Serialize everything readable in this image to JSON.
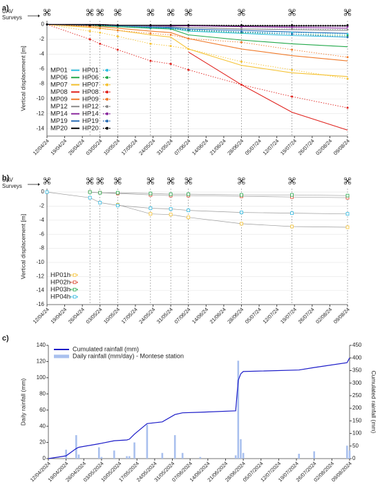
{
  "chart_data": [
    {
      "type": "line",
      "panel_label": "a)",
      "annotation": "UAV Surveys",
      "ylabel": "Vertical displacement [m]",
      "surveys": [
        "12/04/24",
        "29/04/24",
        "03/05/24",
        "10/05/24",
        "23/05/24",
        "31/05/24",
        "07/06/24",
        "28/06/24",
        "18/07/24",
        "09/08/24"
      ],
      "x": [
        "12/04/24",
        "29/04/24",
        "03/05/24",
        "10/05/24",
        "23/05/24",
        "31/05/24",
        "07/06/24",
        "28/06/24",
        "18/07/24",
        "09/08/24"
      ],
      "xlim": [
        "12/04/24",
        "09/08/24"
      ],
      "xticks": [
        "12/04/24",
        "19/04/24",
        "26/04/24",
        "03/05/24",
        "10/05/24",
        "17/05/24",
        "24/05/24",
        "31/05/24",
        "07/06/24",
        "14/06/24",
        "21/06/24",
        "28/06/24",
        "05/07/24",
        "12/07/24",
        "19/07/24",
        "26/07/24",
        "02/08/24",
        "09/08/24"
      ],
      "ylim": [
        -15,
        0.5
      ],
      "yticks": [
        0,
        -2,
        -4,
        -6,
        -8,
        -10,
        -12,
        -14
      ],
      "grid": true,
      "legend": "lower left",
      "series": [
        {
          "name": "MP01",
          "color": "#2fc0e0",
          "style": "solid",
          "values": [
            0,
            -0.1,
            -0.1,
            -0.2,
            -0.4,
            -0.5,
            -0.9,
            -1.2,
            -1.5,
            -1.7
          ]
        },
        {
          "name": "MP06",
          "color": "#22a84a",
          "style": "solid",
          "values": [
            0,
            -0.1,
            -0.2,
            -0.3,
            -0.5,
            -0.6,
            -1.4,
            -2.1,
            -2.6,
            -3.0
          ]
        },
        {
          "name": "MP07",
          "color": "#f5c232",
          "style": "solid",
          "values": [
            0,
            -0.4,
            -0.5,
            -0.8,
            -1.4,
            -1.7,
            -3.3,
            -5.5,
            -6.5,
            -7.0
          ]
        },
        {
          "name": "MP08",
          "color": "#e0211c",
          "style": "solid",
          "values": [
            null,
            null,
            null,
            null,
            null,
            null,
            -3.7,
            -8.1,
            -11.8,
            -14.2
          ]
        },
        {
          "name": "MP09",
          "color": "#f07a2a",
          "style": "solid",
          "values": [
            0,
            -0.2,
            -0.3,
            -0.5,
            -0.9,
            -1.1,
            -1.9,
            -3.3,
            -4.2,
            -4.9
          ]
        },
        {
          "name": "MP12",
          "color": "#888888",
          "style": "solid",
          "values": [
            0,
            0,
            -0.1,
            -0.1,
            -0.2,
            -0.3,
            -0.4,
            -0.6,
            -0.7,
            -0.8
          ]
        },
        {
          "name": "MP14",
          "color": "#8a2a9e",
          "style": "solid",
          "values": [
            0,
            0,
            0,
            -0.1,
            -0.1,
            -0.2,
            -0.2,
            -0.3,
            -0.4,
            -0.5
          ]
        },
        {
          "name": "MP19",
          "color": "#2a6eb5",
          "style": "solid",
          "values": [
            0,
            -0.1,
            -0.1,
            -0.2,
            -0.3,
            -0.4,
            -0.6,
            -0.8,
            -1.0,
            -1.2
          ]
        },
        {
          "name": "MP20",
          "color": "#000000",
          "style": "solid",
          "values": [
            0,
            0,
            0,
            -0.1,
            -0.1,
            -0.1,
            -0.1,
            -0.2,
            -0.2,
            -0.2
          ]
        },
        {
          "name": "HP01",
          "color": "#2fc0e0",
          "style": "dotted",
          "marker": "circle",
          "values": [
            0,
            -0.1,
            -0.2,
            -0.3,
            -0.5,
            -0.6,
            -0.7,
            -1.0,
            -1.1,
            -1.3
          ]
        },
        {
          "name": "HP06",
          "color": "#22a84a",
          "style": "dotted",
          "marker": "circle",
          "values": [
            0,
            -0.1,
            -0.2,
            -0.3,
            -0.5,
            -0.6,
            -0.8,
            -1.1,
            -1.3,
            -1.5
          ]
        },
        {
          "name": "HP07",
          "color": "#f5c232",
          "style": "dotted",
          "marker": "circle",
          "values": [
            0,
            -0.9,
            -1.1,
            -1.6,
            -2.6,
            -2.9,
            -3.3,
            -5.0,
            -6.1,
            -7.3
          ]
        },
        {
          "name": "HP08",
          "color": "#e0211c",
          "style": "dotted",
          "marker": "circle",
          "values": [
            0,
            -2.0,
            -2.6,
            -3.4,
            -4.9,
            -5.3,
            -6.1,
            -8.1,
            -9.7,
            -11.2
          ]
        },
        {
          "name": "HP09",
          "color": "#f07a2a",
          "style": "dotted",
          "marker": "circle",
          "values": [
            0,
            -0.3,
            -0.5,
            -0.8,
            -1.2,
            -1.4,
            -1.9,
            -2.4,
            -3.4,
            -4.4
          ]
        },
        {
          "name": "HP12",
          "color": "#888888",
          "style": "dotted",
          "marker": "circle",
          "values": [
            0,
            -0.1,
            -0.1,
            -0.2,
            -0.3,
            -0.3,
            -0.4,
            -0.6,
            -0.6,
            -0.7
          ]
        },
        {
          "name": "HP14",
          "color": "#8a2a9e",
          "style": "dotted",
          "marker": "circle",
          "values": [
            0,
            -0.1,
            -0.1,
            -0.1,
            -0.2,
            -0.2,
            -0.2,
            -0.3,
            -0.3,
            -0.3
          ]
        },
        {
          "name": "HP19",
          "color": "#2a6eb5",
          "style": "dotted",
          "marker": "circle",
          "values": [
            0,
            -0.1,
            -0.1,
            -0.2,
            -0.4,
            -0.5,
            -0.7,
            -1.0,
            -1.3,
            -1.7
          ]
        },
        {
          "name": "HP20",
          "color": "#000000",
          "style": "dotted",
          "marker": "circle",
          "values": [
            0,
            -0.1,
            -0.1,
            -0.1,
            -0.1,
            -0.1,
            -0.1,
            -0.1,
            -0.1,
            -0.1
          ]
        }
      ]
    },
    {
      "type": "line",
      "panel_label": "b)",
      "annotation": "UAV Surveys",
      "ylabel": "Vertical displacement [m]",
      "surveys": [
        "12/04/24",
        "29/04/24",
        "03/05/24",
        "10/05/24",
        "23/05/24",
        "31/05/24",
        "07/06/24",
        "28/06/24",
        "18/07/24",
        "09/08/24"
      ],
      "x": [
        "12/04/24",
        "29/04/24",
        "03/05/24",
        "10/05/24",
        "23/05/24",
        "31/05/24",
        "07/06/24",
        "28/06/24",
        "18/07/24",
        "09/08/24"
      ],
      "xlim": [
        "12/04/24",
        "09/08/24"
      ],
      "xticks": [
        "12/04/24",
        "19/04/24",
        "26/04/24",
        "03/05/24",
        "10/05/24",
        "17/05/24",
        "24/05/24",
        "31/05/24",
        "07/06/24",
        "14/06/24",
        "21/06/24",
        "28/06/24",
        "05/07/24",
        "12/07/24",
        "19/07/24",
        "26/07/24",
        "02/08/24",
        "09/08/24"
      ],
      "ylim": [
        -16,
        0.5
      ],
      "yticks": [
        0,
        -2,
        -4,
        -6,
        -8,
        -10,
        -12,
        -14,
        -16
      ],
      "grid": true,
      "legend": "lower left",
      "line_color": "#9a9a9a",
      "series": [
        {
          "name": "HP01h",
          "color": "#f5c232",
          "style": "solid",
          "marker": "square",
          "values": [
            null,
            null,
            null,
            -1.8,
            -3.1,
            -3.2,
            -3.6,
            -4.5,
            -4.9,
            -5.0
          ]
        },
        {
          "name": "HP02h",
          "color": "#d9452b",
          "style": "solid",
          "marker": "square",
          "values": [
            null,
            0,
            -0.1,
            -0.2,
            -0.4,
            -0.5,
            -0.5,
            -0.6,
            -0.7,
            -0.8
          ]
        },
        {
          "name": "HP03h",
          "color": "#22a84a",
          "style": "solid",
          "marker": "square",
          "values": [
            null,
            0,
            -0.1,
            -0.1,
            -0.2,
            -0.3,
            -0.3,
            -0.4,
            -0.4,
            -0.5
          ]
        },
        {
          "name": "HP04h",
          "color": "#2fb8e0",
          "style": "solid",
          "marker": "square",
          "values": [
            0,
            -0.8,
            -1.5,
            -1.9,
            -2.3,
            -2.4,
            -2.6,
            -2.9,
            -3.0,
            -3.1
          ]
        }
      ]
    },
    {
      "type": "combo",
      "panel_label": "c)",
      "ylabel": "Daily rainfall (mm)",
      "y2label": "Cumulated rainfall (mm)",
      "xlim": [
        "12/04/2024",
        "09/08/2024"
      ],
      "xticks": [
        "12/04/2024",
        "19/04/2024",
        "26/04/2024",
        "03/05/2024",
        "10/05/2024",
        "17/05/2024",
        "24/05/2024",
        "31/05/2024",
        "07/06/2024",
        "14/06/2024",
        "21/06/2024",
        "28/06/2024",
        "05/07/2024",
        "12/07/2024",
        "19/07/2024",
        "26/07/2024",
        "02/08/2024",
        "09/08/2024"
      ],
      "ylim": [
        0,
        140
      ],
      "yticks": [
        0,
        20,
        40,
        60,
        80,
        100,
        120,
        140
      ],
      "y2lim": [
        0,
        450
      ],
      "y2ticks": [
        0,
        50,
        100,
        150,
        200,
        250,
        300,
        350,
        400,
        450
      ],
      "legend": "upper left",
      "series": [
        {
          "name": "Cumulated rainfall (mm)",
          "color": "#1a1ac8",
          "kind": "line",
          "axis": "y2",
          "x": [
            "12/04/2024",
            "19/04/2024",
            "23/04/2024",
            "24/04/2024",
            "02/05/2024",
            "03/05/2024",
            "08/05/2024",
            "13/05/2024",
            "14/05/2024",
            "16/05/2024",
            "21/05/2024",
            "27/05/2024",
            "01/06/2024",
            "04/06/2024",
            "11/06/2024",
            "25/06/2024",
            "26/06/2024",
            "27/06/2024",
            "28/06/2024",
            "20/07/2024",
            "26/07/2024",
            "08/08/2024",
            "09/08/2024"
          ],
          "values": [
            0,
            11,
            40,
            45,
            59,
            61,
            71,
            74,
            77,
            97,
            139,
            146,
            175,
            182,
            184,
            190,
            311,
            337,
            346,
            352,
            362,
            381,
            400
          ]
        },
        {
          "name": "Daily rainfall (mm/day) - Montese station",
          "color": "#a9c0ee",
          "kind": "bar",
          "x": [
            "19/04/2024",
            "23/04/2024",
            "24/04/2024",
            "02/05/2024",
            "03/05/2024",
            "08/05/2024",
            "13/05/2024",
            "14/05/2024",
            "16/05/2024",
            "21/05/2024",
            "27/05/2024",
            "01/06/2024",
            "04/06/2024",
            "11/06/2024",
            "25/06/2024",
            "26/06/2024",
            "27/06/2024",
            "28/06/2024",
            "20/07/2024",
            "26/07/2024",
            "08/08/2024",
            "09/08/2024"
          ],
          "values": [
            11,
            29,
            5,
            14,
            2,
            10,
            3,
            3,
            20,
            42,
            7,
            29,
            7,
            2,
            4,
            121,
            24,
            7,
            6,
            9,
            16,
            10
          ]
        }
      ]
    }
  ]
}
